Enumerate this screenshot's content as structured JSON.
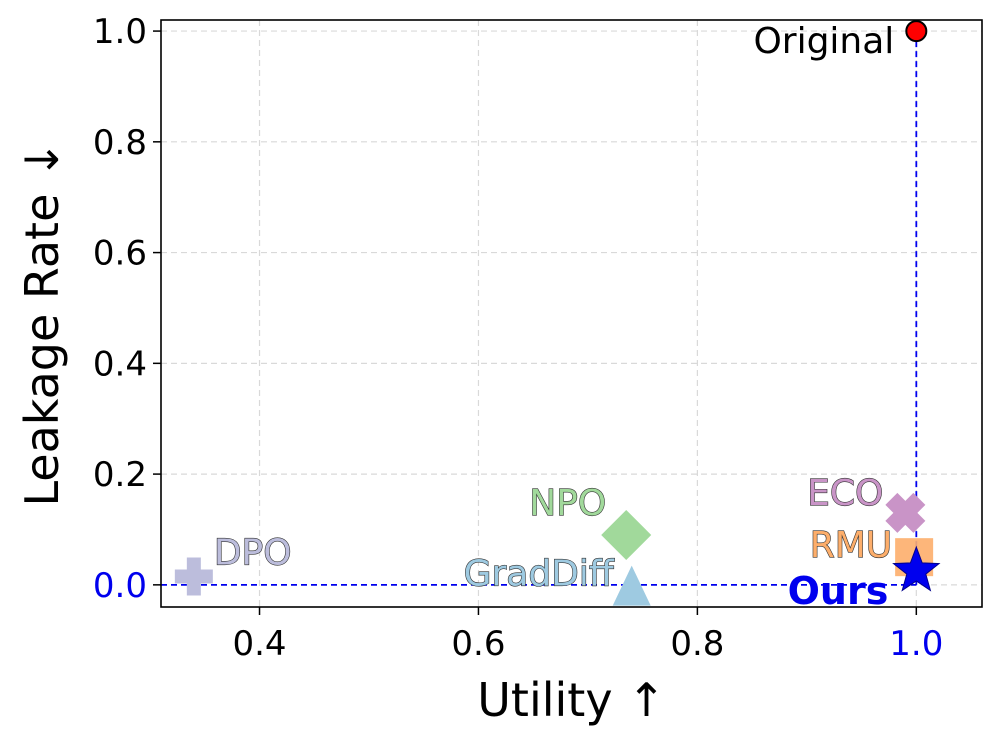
{
  "chart_data": {
    "type": "scatter",
    "xlabel": "Utility ↑",
    "ylabel": "Leakage Rate ↓",
    "xlim": [
      0.31,
      1.06
    ],
    "ylim": [
      -0.04,
      1.02
    ],
    "x_ticks": [
      "0.4",
      "0.6",
      "0.8",
      "1.0"
    ],
    "y_ticks": [
      "0.0",
      "0.2",
      "0.4",
      "0.6",
      "0.8",
      "1.0"
    ],
    "highlighted_ticks": {
      "x": "1.0",
      "y": "0.0"
    },
    "grid": true,
    "reference_lines": {
      "x": 1.0,
      "y": 0.0,
      "color": "#0000ee",
      "style": "dashed"
    },
    "points": [
      {
        "label": "Original",
        "x": 1.0,
        "y": 1.0,
        "marker": "circle",
        "color": "#ff0000"
      },
      {
        "label": "DPO",
        "x": 0.34,
        "y": 0.015,
        "marker": "plus",
        "color": "#bcbddc"
      },
      {
        "label": "NPO",
        "x": 0.735,
        "y": 0.09,
        "marker": "diamond",
        "color": "#a1d99b"
      },
      {
        "label": "GradDiff",
        "x": 0.74,
        "y": -0.005,
        "marker": "triangle",
        "color": "#9ecae1"
      },
      {
        "label": "ECO",
        "x": 0.99,
        "y": 0.13,
        "marker": "x",
        "color": "#c994c7"
      },
      {
        "label": "RMU",
        "x": 0.998,
        "y": 0.05,
        "marker": "square",
        "color": "#fdae6b"
      },
      {
        "label": "Ours",
        "x": 1.0,
        "y": 0.025,
        "marker": "star",
        "color": "#0000ee"
      }
    ]
  }
}
